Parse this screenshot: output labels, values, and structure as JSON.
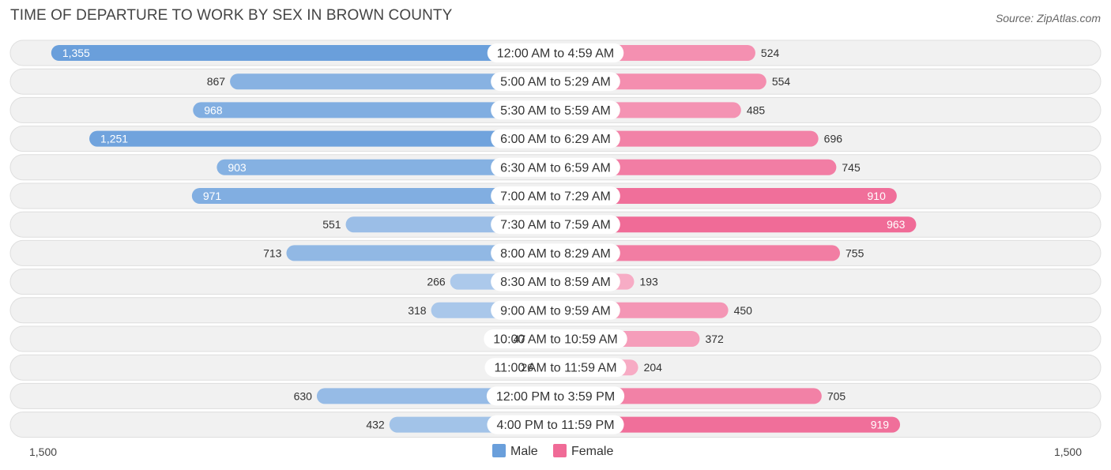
{
  "title": "TIME OF DEPARTURE TO WORK BY SEX IN BROWN COUNTY",
  "source": "Source: ZipAtlas.com",
  "chart_data": {
    "type": "bar",
    "orientation": "horizontal-diverging",
    "title": "TIME OF DEPARTURE TO WORK BY SEX IN BROWN COUNTY",
    "categories": [
      "12:00 AM to 4:59 AM",
      "5:00 AM to 5:29 AM",
      "5:30 AM to 5:59 AM",
      "6:00 AM to 6:29 AM",
      "6:30 AM to 6:59 AM",
      "7:00 AM to 7:29 AM",
      "7:30 AM to 7:59 AM",
      "8:00 AM to 8:29 AM",
      "8:30 AM to 8:59 AM",
      "9:00 AM to 9:59 AM",
      "10:00 AM to 10:59 AM",
      "11:00 AM to 11:59 AM",
      "12:00 PM to 3:59 PM",
      "4:00 PM to 11:59 PM"
    ],
    "series": [
      {
        "name": "Male",
        "color": "#6a9fdb",
        "values": [
          1355,
          867,
          968,
          1251,
          903,
          971,
          551,
          713,
          266,
          318,
          47,
          26,
          630,
          432
        ],
        "labels": [
          "1,355",
          "867",
          "968",
          "1,251",
          "903",
          "971",
          "551",
          "713",
          "266",
          "318",
          "47",
          "26",
          "630",
          "432"
        ]
      },
      {
        "name": "Female",
        "color": "#f06b97",
        "values": [
          524,
          554,
          485,
          696,
          745,
          910,
          963,
          755,
          193,
          450,
          372,
          204,
          705,
          919
        ],
        "labels": [
          "524",
          "554",
          "485",
          "696",
          "745",
          "910",
          "963",
          "755",
          "193",
          "450",
          "372",
          "204",
          "705",
          "919"
        ]
      }
    ],
    "axis": {
      "left_label": "1,500",
      "right_label": "1,500",
      "max": 1500
    },
    "legend": {
      "position": "bottom-center",
      "items": [
        "Male",
        "Female"
      ]
    }
  }
}
